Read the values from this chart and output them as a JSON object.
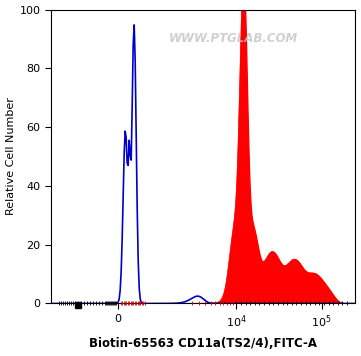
{
  "xlabel": "Biotin-65563 CD11a(TS2/4),FITC-A",
  "ylabel": "Relative Cell Number",
  "ylim": [
    0,
    100
  ],
  "background_color": "#ffffff",
  "plot_bg_color": "#ffffff",
  "blue_color": "#0000cc",
  "red_color": "#ff0000",
  "watermark": "WWW.PTGLAB.COM",
  "yticks": [
    0,
    20,
    40,
    60,
    80,
    100
  ],
  "linthresh": 1000,
  "linscale": 0.35
}
